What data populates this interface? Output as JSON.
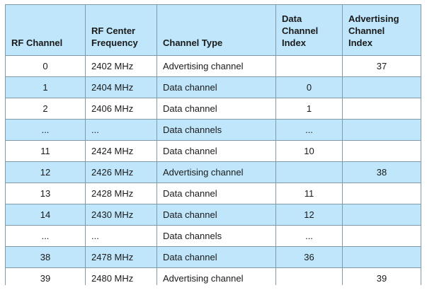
{
  "table": {
    "headers": [
      "RF Channel",
      "RF Center\nFrequency",
      "Channel Type",
      "Data\nChannel\nIndex",
      "Advertising\nChannel\nIndex"
    ],
    "header_lines": [
      [
        "RF Channel"
      ],
      [
        "RF Center",
        "Frequency"
      ],
      [
        "Channel Type"
      ],
      [
        "Data",
        "Channel",
        "Index"
      ],
      [
        "Advertising",
        "Channel",
        "Index"
      ]
    ],
    "rows": [
      {
        "rf_channel": "0",
        "frequency": "2402 MHz",
        "type": "Advertising channel",
        "data_index": "",
        "adv_index": "37",
        "shade": "white"
      },
      {
        "rf_channel": "1",
        "frequency": "2404 MHz",
        "type": "Data channel",
        "data_index": "0",
        "adv_index": "",
        "shade": "blue"
      },
      {
        "rf_channel": "2",
        "frequency": "2406 MHz",
        "type": "Data channel",
        "data_index": "1",
        "adv_index": "",
        "shade": "white"
      },
      {
        "rf_channel": "...",
        "frequency": "...",
        "type": "Data channels",
        "data_index": "...",
        "adv_index": "",
        "shade": "blue"
      },
      {
        "rf_channel": "11",
        "frequency": "2424 MHz",
        "type": "Data channel",
        "data_index": "10",
        "adv_index": "",
        "shade": "white"
      },
      {
        "rf_channel": "12",
        "frequency": "2426 MHz",
        "type": "Advertising channel",
        "data_index": "",
        "adv_index": "38",
        "shade": "blue"
      },
      {
        "rf_channel": "13",
        "frequency": "2428 MHz",
        "type": "Data channel",
        "data_index": "11",
        "adv_index": "",
        "shade": "white"
      },
      {
        "rf_channel": "14",
        "frequency": "2430 MHz",
        "type": "Data channel",
        "data_index": "12",
        "adv_index": "",
        "shade": "blue"
      },
      {
        "rf_channel": "...",
        "frequency": "...",
        "type": "Data channels",
        "data_index": "...",
        "adv_index": "",
        "shade": "white"
      },
      {
        "rf_channel": "38",
        "frequency": "2478 MHz",
        "type": "Data channel",
        "data_index": "36",
        "adv_index": "",
        "shade": "blue"
      },
      {
        "rf_channel": "39",
        "frequency": "2480 MHz",
        "type": "Advertising channel",
        "data_index": "",
        "adv_index": "39",
        "shade": "white"
      }
    ]
  },
  "colors": {
    "header_bg": "#bfe6fa",
    "row_blue": "#bfe6fa",
    "row_white": "#ffffff",
    "border": "#7f9aa8"
  }
}
